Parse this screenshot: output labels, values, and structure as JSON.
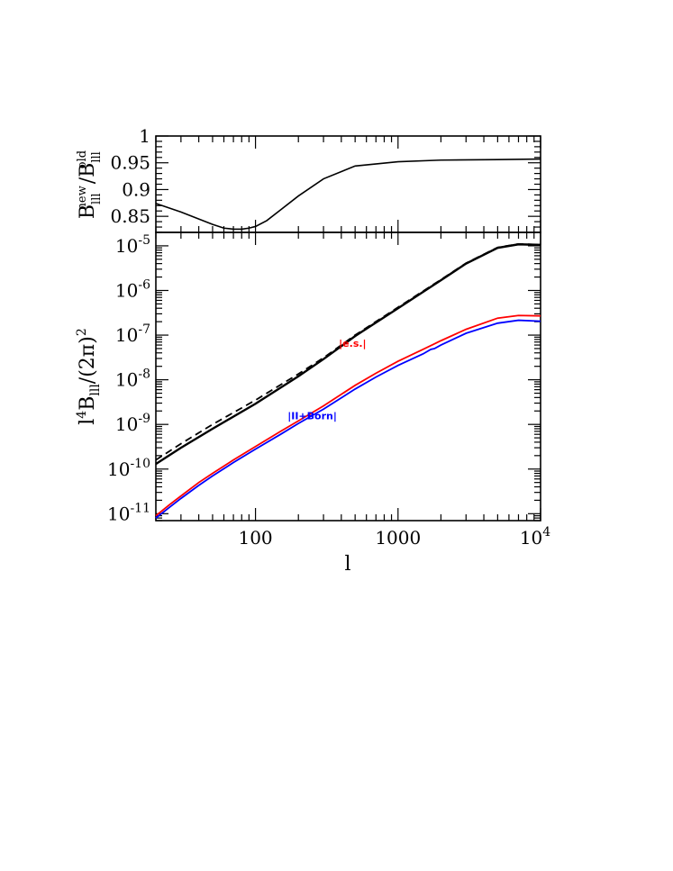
{
  "chart_data": [
    {
      "type": "line",
      "panel": "top",
      "ylabel": "B_lll^new / B_lll^old",
      "xscale": "log",
      "xlim": [
        20,
        10000
      ],
      "ylim": [
        0.82,
        1.0
      ],
      "yticks": [
        "0.85",
        "0.9",
        "0.95",
        "1"
      ],
      "series": [
        {
          "color": "#000000",
          "style": "solid",
          "x": [
            20,
            30,
            40,
            50,
            60,
            70,
            80,
            90,
            100,
            120,
            150,
            200,
            300,
            500,
            1000,
            2000,
            5000,
            10000
          ],
          "y": [
            0.874,
            0.858,
            0.845,
            0.835,
            0.828,
            0.826,
            0.826,
            0.828,
            0.831,
            0.842,
            0.862,
            0.888,
            0.92,
            0.944,
            0.952,
            0.955,
            0.956,
            0.957
          ]
        }
      ]
    },
    {
      "type": "line",
      "panel": "bottom",
      "xlabel": "l",
      "ylabel": "l^4 B_lll / (2π)^2",
      "xscale": "log",
      "yscale": "log",
      "xlim": [
        20,
        10000
      ],
      "ylim": [
        7e-12,
        2e-05
      ],
      "xticks": [
        "100",
        "1000",
        "10^4"
      ],
      "yticks": [
        "10^-11",
        "10^-10",
        "10^-9",
        "10^-8",
        "10^-7",
        "10^-6",
        "10^-5"
      ],
      "series": [
        {
          "color": "#000000",
          "style": "solid",
          "x": [
            20,
            30,
            50,
            100,
            200,
            300,
            500,
            1000,
            2000,
            3000,
            5000,
            7000,
            10000
          ],
          "y": [
            1.3e-10,
            3e-10,
            8e-10,
            2.9e-09,
            1.2e-08,
            2.9e-08,
            9.5e-08,
            4e-07,
            1.7e-06,
            4e-06,
            9e-06,
            1.08e-05,
            1.05e-05
          ]
        },
        {
          "color": "#000000",
          "style": "dashed",
          "x": [
            20,
            30,
            50,
            100,
            200,
            300,
            500,
            1000,
            2000,
            3000,
            5000,
            7000,
            10000
          ],
          "y": [
            1.6e-10,
            3.7e-10,
            1e-09,
            3.5e-09,
            1.35e-08,
            3.1e-08,
            1e-07,
            4.2e-07,
            1.75e-06,
            4.1e-06,
            9.2e-06,
            1.1e-05,
            1.06e-05
          ]
        },
        {
          "color": "#ff0000",
          "style": "solid",
          "x": [
            20,
            25,
            30,
            40,
            50,
            70,
            100,
            150,
            200,
            300,
            500,
            700,
            1000,
            1500,
            2000,
            3000,
            5000,
            7000,
            10000
          ],
          "y": [
            9e-12,
            1.6e-11,
            2.5e-11,
            5e-11,
            8e-11,
            1.6e-10,
            3.2e-10,
            7e-10,
            1.2e-09,
            2.6e-09,
            7.5e-09,
            1.4e-08,
            2.6e-08,
            4.8e-08,
            7.5e-08,
            1.35e-07,
            2.4e-07,
            2.75e-07,
            2.7e-07
          ]
        },
        {
          "color": "#0000ff",
          "style": "solid",
          "x": [
            20,
            25,
            30,
            40,
            50,
            70,
            100,
            150,
            200,
            300,
            500,
            700,
            1000,
            1500,
            1700,
            1800,
            2000,
            3000,
            5000,
            7000,
            10000
          ],
          "y": [
            8e-12,
            1.4e-11,
            2.2e-11,
            4.3e-11,
            7e-11,
            1.4e-10,
            2.8e-10,
            6e-10,
            1.05e-09,
            2.2e-09,
            6.2e-09,
            1.15e-08,
            2.1e-08,
            3.8e-08,
            4.8e-08,
            5e-08,
            6e-08,
            1.1e-07,
            1.85e-07,
            2.15e-07,
            2.05e-07
          ]
        }
      ],
      "annotations": [
        {
          "text": "|e.s.|",
          "color": "#ff0000",
          "x": 480,
          "y": 5.5e-08
        },
        {
          "text": "|II+Born|",
          "color": "#0000ff",
          "x": 250,
          "y": 1.3e-09
        }
      ]
    }
  ]
}
